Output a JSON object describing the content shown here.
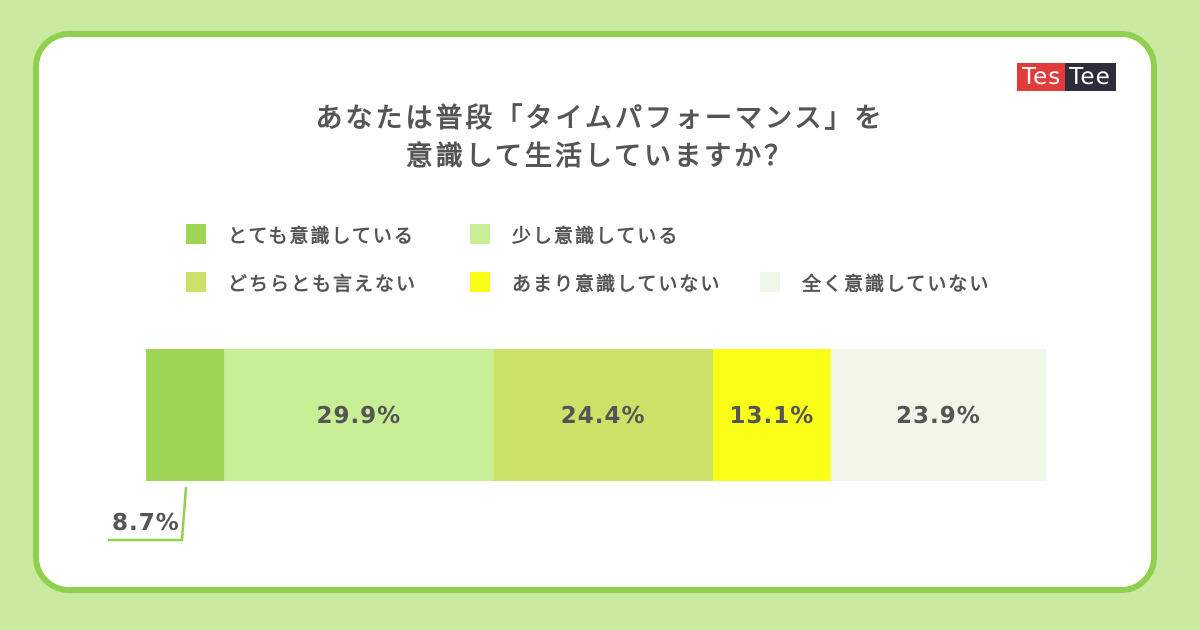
{
  "logo": {
    "part1": "Tes",
    "part2": "Tee"
  },
  "chart_data": {
    "type": "bar",
    "orientation": "horizontal-stacked",
    "title_line1": "あなたは普段「タイムパフォーマンス」を",
    "title_line2": "意識して生活していますか？",
    "categories": [
      "とても意識している",
      "少し意識している",
      "どちらとも言えない",
      "あまり意識していない",
      "全く意識していない"
    ],
    "values": [
      8.7,
      29.9,
      24.4,
      13.1,
      23.9
    ],
    "labels": [
      "8.7%",
      "29.9%",
      "24.4%",
      "13.1%",
      "23.9%"
    ],
    "colors": [
      "#9ed554",
      "#c9ef96",
      "#cbe168",
      "#fbff18",
      "#f1f7e8"
    ],
    "unit": "%",
    "xlim": [
      0,
      100
    ],
    "legend_position": "top",
    "grid": false
  }
}
